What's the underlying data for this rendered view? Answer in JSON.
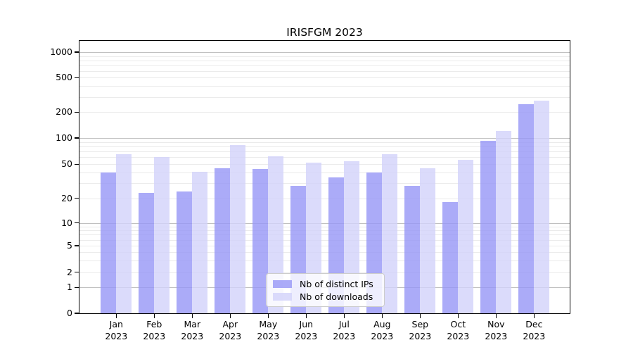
{
  "chart_data": {
    "type": "bar",
    "title": "IRISFGM 2023",
    "xlabel": "",
    "ylabel": "",
    "yscale": "symlog",
    "ylim": [
      0,
      1000
    ],
    "yticks": [
      0,
      1,
      2,
      5,
      10,
      20,
      50,
      100,
      200,
      500,
      1000
    ],
    "grid": "on",
    "legend_position": "lower center inside plot",
    "categories": [
      "Jan 2023",
      "Feb 2023",
      "Mar 2023",
      "Apr 2023",
      "May 2023",
      "Jun 2023",
      "Jul 2023",
      "Aug 2023",
      "Sep 2023",
      "Oct 2023",
      "Nov 2023",
      "Dec 2023"
    ],
    "series": [
      {
        "name": "Nb of distinct IPs",
        "color": "#9696f6",
        "alpha": 0.8,
        "values": [
          40,
          23,
          24,
          45,
          44,
          28,
          35,
          40,
          28,
          18,
          93,
          245
        ]
      },
      {
        "name": "Nb of downloads",
        "color": "#d2d2fa",
        "alpha": 0.8,
        "values": [
          65,
          60,
          41,
          83,
          62,
          52,
          54,
          65,
          45,
          56,
          120,
          273
        ]
      }
    ]
  }
}
